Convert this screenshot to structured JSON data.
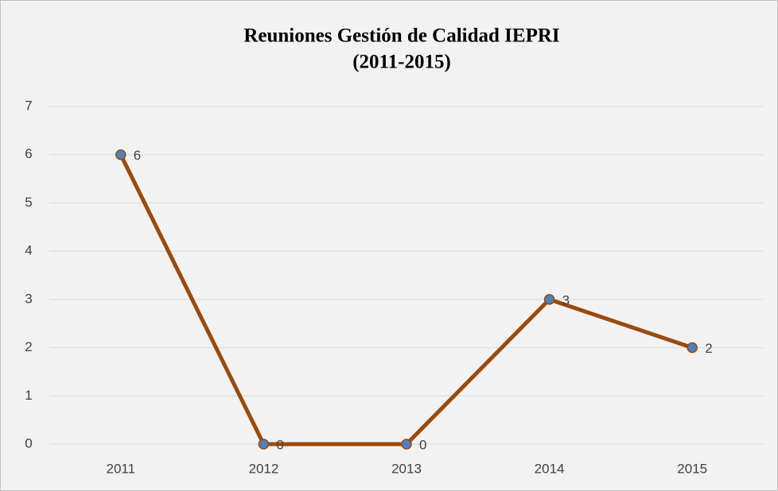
{
  "chart_data": {
    "type": "line",
    "title": [
      "Reuniones Gestión de Calidad IEPRI",
      "(2011-2015)"
    ],
    "categories": [
      "2011",
      "2012",
      "2013",
      "2014",
      "2015"
    ],
    "values": [
      6,
      0,
      0,
      3,
      2
    ],
    "color": "#9a4a0c",
    "marker_color": "#4f81bd",
    "ylim": [
      0,
      7
    ],
    "yticks": [
      0,
      1,
      2,
      3,
      4,
      5,
      6,
      7
    ],
    "grid": true
  }
}
